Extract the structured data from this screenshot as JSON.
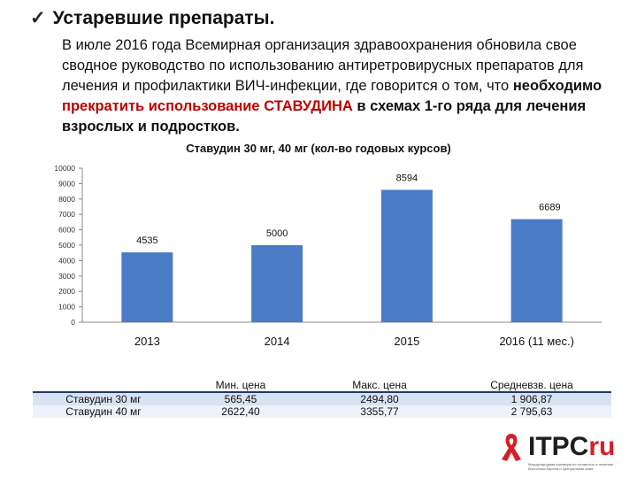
{
  "heading": {
    "check": "✓",
    "text": "Устаревшие препараты."
  },
  "intro": {
    "part1": "В июле 2016 года Всемирная организация здравоохранения обновила свое сводное руководство по использованию антиретровирусных препаратов для лечения и профилактики ВИЧ-инфекции, где говорится о том, что ",
    "part2": "необходимо ",
    "part3": "прекратить использование СТАВУДИНА",
    "part4": " в схемах 1-го ряда для лечения взрослых и подростков."
  },
  "chart_data": {
    "type": "bar",
    "title": "Ставудин 30 мг, 40 мг (кол-во годовых курсов)",
    "categories": [
      "2013",
      "2014",
      "2015",
      "2016 (11 мес.)"
    ],
    "values": [
      4535,
      5000,
      8594,
      6689
    ],
    "data_labels": [
      "4535",
      "5000",
      "8594",
      "6689"
    ],
    "y_ticks": [
      "0",
      "1000",
      "2000",
      "3000",
      "4000",
      "5000",
      "6000",
      "7000",
      "8000",
      "9000",
      "10000"
    ],
    "ylim": [
      0,
      10000
    ],
    "bar_color": "#4a7cc6",
    "grid": false
  },
  "table": {
    "header": [
      "",
      "Мин. цена",
      "Макс. цена",
      "Средневзв. цена"
    ],
    "rows": [
      [
        "Ставудин 30 мг",
        "565,45",
        "2494,80",
        "1 906,87"
      ],
      [
        "Ставудин 40 мг",
        "2622,40",
        "3355,77",
        "2 795,63"
      ]
    ]
  },
  "logo": {
    "brand": "ITPC",
    "suffix": "ru",
    "tagline": "Международная коалиция по готовности к лечению · Восточная Европа и Центральная Азия",
    "accent": "#d42027"
  }
}
